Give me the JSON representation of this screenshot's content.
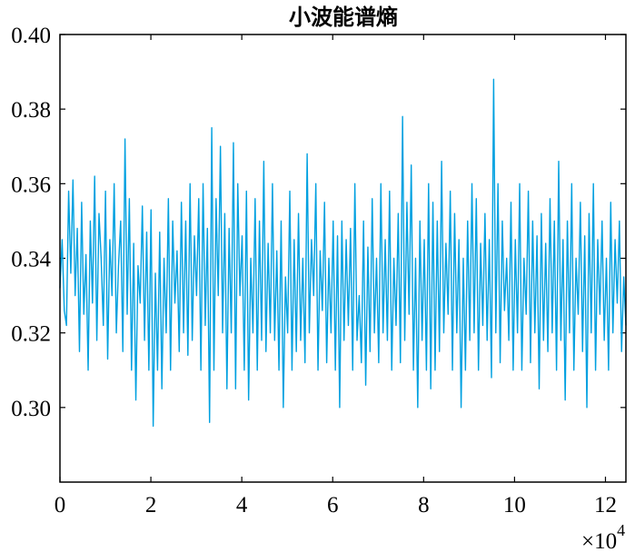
{
  "chart_data": {
    "type": "line",
    "title": "小波能谱熵",
    "xlabel": "",
    "ylabel": "",
    "x_multiplier_label": "×10",
    "x_multiplier_exponent": "4",
    "xlim": [
      0,
      12.45
    ],
    "ylim": [
      0.28,
      0.4
    ],
    "x_ticks": [
      0,
      2,
      4,
      6,
      8,
      10,
      12
    ],
    "x_tick_labels": [
      "0",
      "2",
      "4",
      "6",
      "8",
      "10",
      "12"
    ],
    "y_ticks": [
      0.3,
      0.32,
      0.34,
      0.36,
      0.38,
      0.4
    ],
    "y_tick_labels": [
      "0.30",
      "0.32",
      "0.34",
      "0.36",
      "0.38",
      "0.40"
    ],
    "grid": false,
    "line_color": "#00a0e0",
    "series": [
      {
        "values": [
          0.332,
          0.345,
          0.326,
          0.322,
          0.358,
          0.336,
          0.361,
          0.33,
          0.348,
          0.315,
          0.355,
          0.325,
          0.341,
          0.31,
          0.35,
          0.328,
          0.362,
          0.318,
          0.352,
          0.34,
          0.322,
          0.358,
          0.313,
          0.345,
          0.33,
          0.36,
          0.32,
          0.338,
          0.35,
          0.315,
          0.372,
          0.325,
          0.356,
          0.31,
          0.344,
          0.302,
          0.338,
          0.328,
          0.354,
          0.318,
          0.347,
          0.31,
          0.353,
          0.295,
          0.336,
          0.31,
          0.347,
          0.305,
          0.34,
          0.32,
          0.356,
          0.31,
          0.35,
          0.328,
          0.342,
          0.315,
          0.355,
          0.32,
          0.35,
          0.314,
          0.36,
          0.318,
          0.346,
          0.33,
          0.356,
          0.31,
          0.36,
          0.322,
          0.348,
          0.296,
          0.375,
          0.31,
          0.356,
          0.33,
          0.37,
          0.32,
          0.352,
          0.305,
          0.348,
          0.32,
          0.371,
          0.305,
          0.36,
          0.33,
          0.346,
          0.31,
          0.358,
          0.302,
          0.34,
          0.32,
          0.356,
          0.31,
          0.35,
          0.318,
          0.366,
          0.315,
          0.344,
          0.32,
          0.36,
          0.318,
          0.342,
          0.31,
          0.35,
          0.3,
          0.335,
          0.32,
          0.358,
          0.31,
          0.345,
          0.315,
          0.352,
          0.318,
          0.34,
          0.312,
          0.368,
          0.32,
          0.345,
          0.33,
          0.36,
          0.31,
          0.342,
          0.326,
          0.355,
          0.312,
          0.34,
          0.32,
          0.35,
          0.31,
          0.346,
          0.3,
          0.35,
          0.318,
          0.345,
          0.322,
          0.348,
          0.31,
          0.36,
          0.318,
          0.33,
          0.312,
          0.35,
          0.306,
          0.343,
          0.315,
          0.356,
          0.32,
          0.34,
          0.312,
          0.36,
          0.32,
          0.345,
          0.318,
          0.358,
          0.31,
          0.34,
          0.322,
          0.352,
          0.312,
          0.378,
          0.318,
          0.355,
          0.325,
          0.365,
          0.31,
          0.34,
          0.3,
          0.35,
          0.318,
          0.345,
          0.31,
          0.36,
          0.305,
          0.355,
          0.31,
          0.35,
          0.315,
          0.366,
          0.32,
          0.344,
          0.325,
          0.358,
          0.31,
          0.352,
          0.32,
          0.345,
          0.3,
          0.34,
          0.31,
          0.35,
          0.318,
          0.36,
          0.32,
          0.356,
          0.31,
          0.344,
          0.322,
          0.352,
          0.318,
          0.345,
          0.308,
          0.388,
          0.32,
          0.36,
          0.312,
          0.35,
          0.326,
          0.34,
          0.318,
          0.355,
          0.31,
          0.345,
          0.32,
          0.36,
          0.31,
          0.34,
          0.325,
          0.358,
          0.312,
          0.35,
          0.32,
          0.346,
          0.305,
          0.352,
          0.318,
          0.344,
          0.315,
          0.356,
          0.32,
          0.35,
          0.31,
          0.366,
          0.318,
          0.345,
          0.302,
          0.35,
          0.32,
          0.36,
          0.31,
          0.34,
          0.325,
          0.355,
          0.315,
          0.346,
          0.3,
          0.352,
          0.32,
          0.36,
          0.31,
          0.345,
          0.325,
          0.35,
          0.318,
          0.34,
          0.31,
          0.355,
          0.32,
          0.345,
          0.328,
          0.35,
          0.315,
          0.335,
          0.322
        ]
      }
    ]
  }
}
